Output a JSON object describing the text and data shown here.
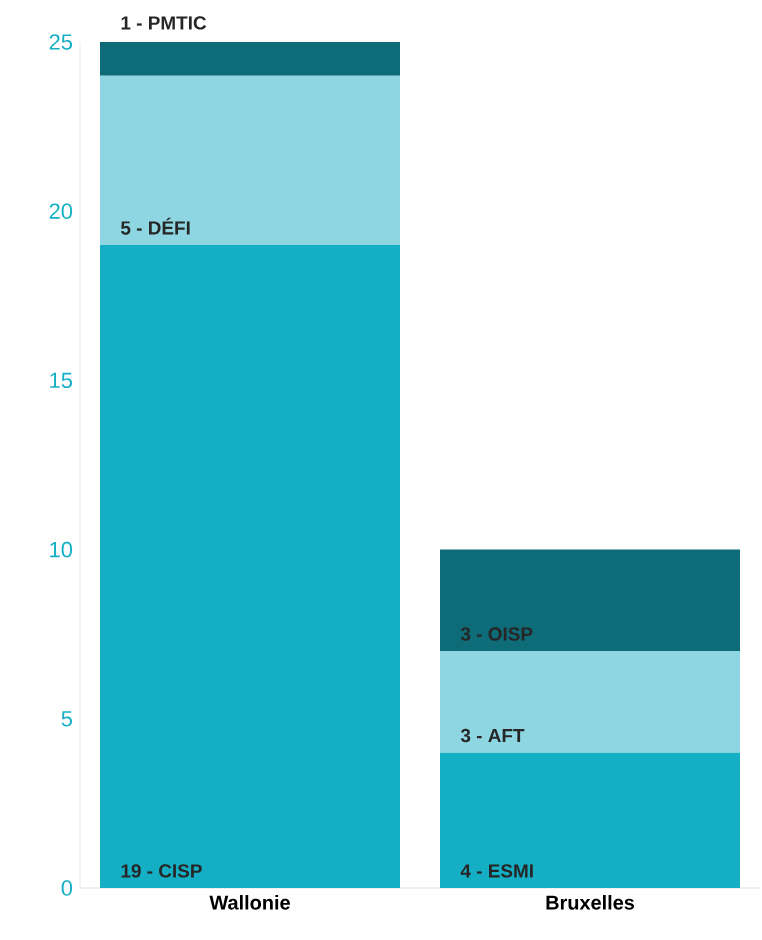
{
  "chart_data": {
    "type": "bar",
    "stacked": true,
    "categories": [
      "Wallonie",
      "Bruxelles"
    ],
    "series": [
      {
        "color": "#14afc5",
        "values": [
          19,
          4
        ],
        "value_labels": [
          "19 - CISP",
          "4 - ESMI"
        ]
      },
      {
        "color": "#8dd6e2",
        "values": [
          5,
          3
        ],
        "value_labels": [
          "5 - DÉFI",
          "3 - AFT"
        ]
      },
      {
        "color": "#0e6b78",
        "values": [
          1,
          3
        ],
        "value_labels": [
          "1 - PMTIC",
          "3 - OISP"
        ]
      }
    ],
    "ylim": [
      0,
      25
    ],
    "yticks": [
      0,
      5,
      10,
      15,
      20,
      25
    ],
    "grid": false
  }
}
